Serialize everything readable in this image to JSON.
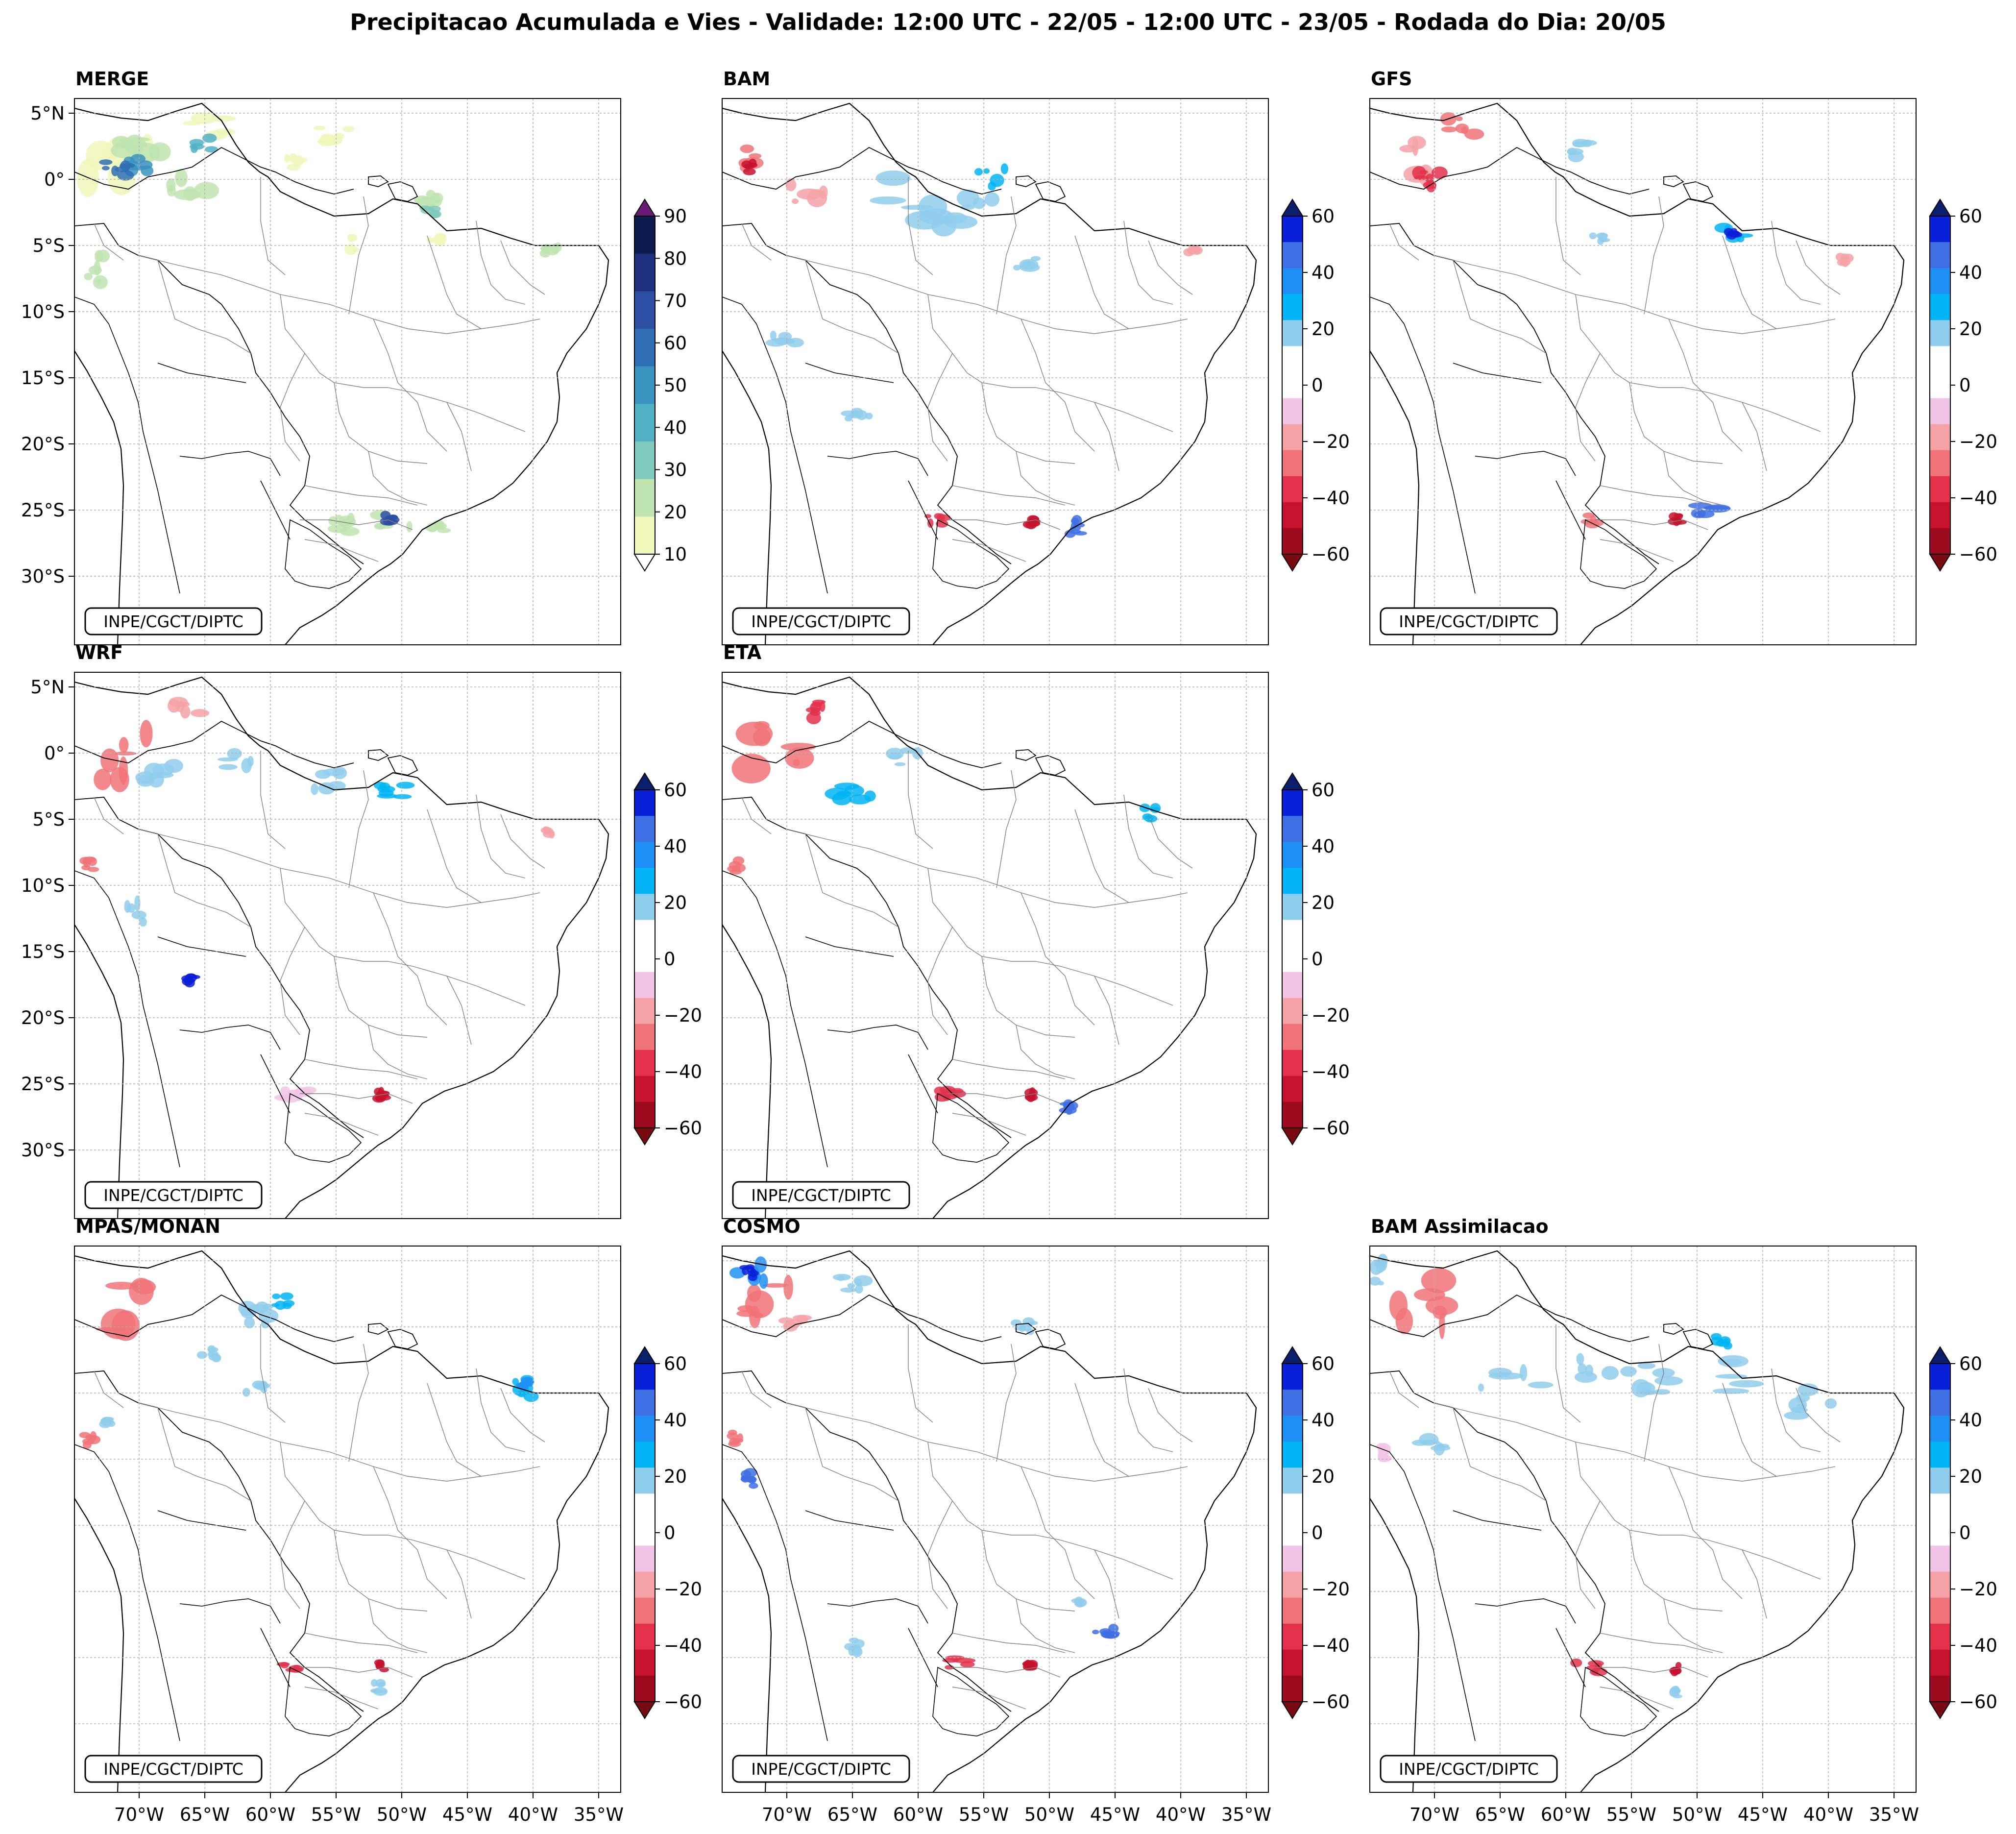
{
  "figure_title": "Precipitacao Acumulada e Vies - Validade: 12:00 UTC - 22/05 - 12:00 UTC - 23/05 - Rodada do Dia: 20/05",
  "credit": "INPE/CGCT/DIPTC",
  "latitude_labels": [
    "5°N",
    "0°",
    "5°S",
    "10°S",
    "15°S",
    "20°S",
    "25°S",
    "30°S"
  ],
  "longitude_labels": [
    "70°W",
    "65°W",
    "60°W",
    "55°W",
    "50°W",
    "45°W",
    "40°W",
    "35°W"
  ],
  "panels": [
    {
      "title": "MERGE",
      "scale": "precip",
      "show_lat": true,
      "show_lon": false
    },
    {
      "title": "BAM",
      "scale": "bias",
      "show_lat": false,
      "show_lon": false
    },
    {
      "title": "GFS",
      "scale": "bias",
      "show_lat": false,
      "show_lon": false
    },
    {
      "title": "WRF",
      "scale": "bias",
      "show_lat": true,
      "show_lon": false
    },
    {
      "title": "ETA",
      "scale": "bias",
      "show_lat": false,
      "show_lon": false
    },
    {
      "title": "MPAS/MONAN",
      "scale": "bias",
      "show_lat": false,
      "show_lon": true
    },
    {
      "title": "COSMO",
      "scale": "bias",
      "show_lat": false,
      "show_lon": true
    },
    {
      "title": "BAM Assimilacao",
      "scale": "bias",
      "show_lat": false,
      "show_lon": true
    }
  ],
  "colorbars": {
    "precip": {
      "ticks": [
        "90",
        "80",
        "70",
        "60",
        "50",
        "40",
        "30",
        "20",
        "10"
      ],
      "colors": [
        "#0e1b4f",
        "#1f2f80",
        "#2c4ea3",
        "#2f6fb5",
        "#3a92c0",
        "#4fb1c4",
        "#7fc8bb",
        "#bfe4b0",
        "#eef7b9"
      ],
      "over_color": "#6a1b76",
      "under_color": "#ffffff"
    },
    "bias": {
      "ticks": [
        "60",
        "40",
        "20",
        "0",
        "−20",
        "−40",
        "−60"
      ],
      "colors": [
        "#0a1fd8",
        "#3e6fe3",
        "#1e90f5",
        "#00b4f5",
        "#8fcdec",
        "#ffffff",
        "#ffffff",
        "#f2c4e8",
        "#f5a2a6",
        "#f07378",
        "#e3304b",
        "#c6122d",
        "#9b0a1f"
      ],
      "over_color": "#0b1e6b",
      "under_color": "#7a0a12"
    }
  }
}
